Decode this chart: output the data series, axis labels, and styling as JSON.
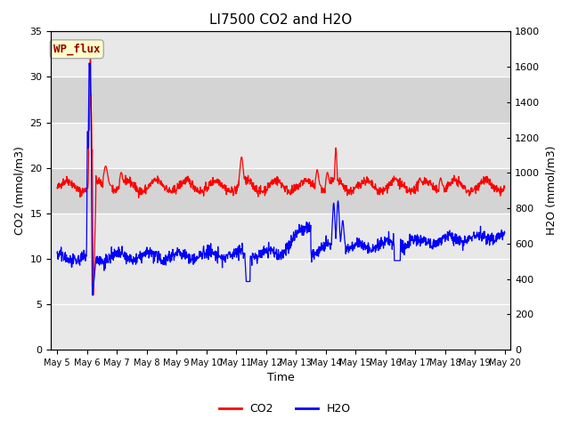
{
  "title": "LI7500 CO2 and H2O",
  "xlabel": "Time",
  "ylabel_left": "CO2 (mmol/m3)",
  "ylabel_right": "H2O (mmol/m3)",
  "ylim_left": [
    0,
    35
  ],
  "ylim_right": [
    0,
    1800
  ],
  "annotation_text": "WP_flux",
  "annotation_box_color": "#ffffcc",
  "annotation_text_color": "#990000",
  "annotation_border_color": "#aaaaaa",
  "co2_color": "red",
  "h2o_color": "blue",
  "background_color": "#ffffff",
  "plot_bg_color": "#e8e8e8",
  "band_color": "#d0d0d0",
  "grid_color": "#ffffff",
  "legend_co2": "CO2",
  "legend_h2o": "H2O",
  "n_days": 15,
  "seed": 42,
  "figsize": [
    6.4,
    4.8
  ],
  "dpi": 100
}
